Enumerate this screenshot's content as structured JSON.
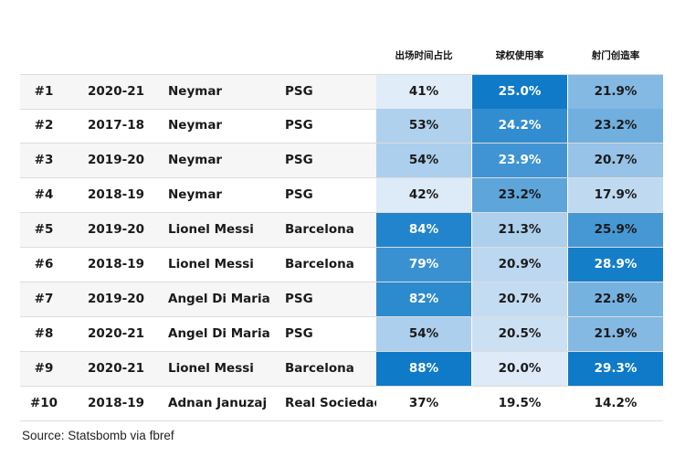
{
  "chart_data": {
    "type": "table",
    "columns": [
      "出场时间占比",
      "球权使用率",
      "射门创造率"
    ],
    "rows": [
      {
        "rank": "#1",
        "season": "2020-21",
        "player": "Neymar",
        "team": "PSG",
        "values": [
          "41%",
          "25.0%",
          "21.9%"
        ]
      },
      {
        "rank": "#2",
        "season": "2017-18",
        "player": "Neymar",
        "team": "PSG",
        "values": [
          "53%",
          "24.2%",
          "23.2%"
        ]
      },
      {
        "rank": "#3",
        "season": "2019-20",
        "player": "Neymar",
        "team": "PSG",
        "values": [
          "54%",
          "23.9%",
          "20.7%"
        ]
      },
      {
        "rank": "#4",
        "season": "2018-19",
        "player": "Neymar",
        "team": "PSG",
        "values": [
          "42%",
          "23.2%",
          "17.9%"
        ]
      },
      {
        "rank": "#5",
        "season": "2019-20",
        "player": "Lionel Messi",
        "team": "Barcelona",
        "values": [
          "84%",
          "21.3%",
          "25.9%"
        ]
      },
      {
        "rank": "#6",
        "season": "2018-19",
        "player": "Lionel Messi",
        "team": "Barcelona",
        "values": [
          "79%",
          "20.9%",
          "28.9%"
        ]
      },
      {
        "rank": "#7",
        "season": "2019-20",
        "player": "Angel Di Maria",
        "team": "PSG",
        "values": [
          "82%",
          "20.7%",
          "22.8%"
        ]
      },
      {
        "rank": "#8",
        "season": "2020-21",
        "player": "Angel Di Maria",
        "team": "PSG",
        "values": [
          "54%",
          "20.5%",
          "21.9%"
        ]
      },
      {
        "rank": "#9",
        "season": "2020-21",
        "player": "Lionel Messi",
        "team": "Barcelona",
        "values": [
          "88%",
          "20.0%",
          "29.3%"
        ]
      },
      {
        "rank": "#10",
        "season": "2018-19",
        "player": "Adnan Januzaj",
        "team": "Real Sociedad",
        "values": [
          "37%",
          "19.5%",
          "14.2%"
        ]
      }
    ],
    "heatmap_colors": {
      "low": "#eef3fb",
      "high": "#0f7ac8",
      "text_on_dark": "#ffffff",
      "text_on_light": "#1a1a1a"
    }
  },
  "source": "Source: Statsbomb via fbref"
}
